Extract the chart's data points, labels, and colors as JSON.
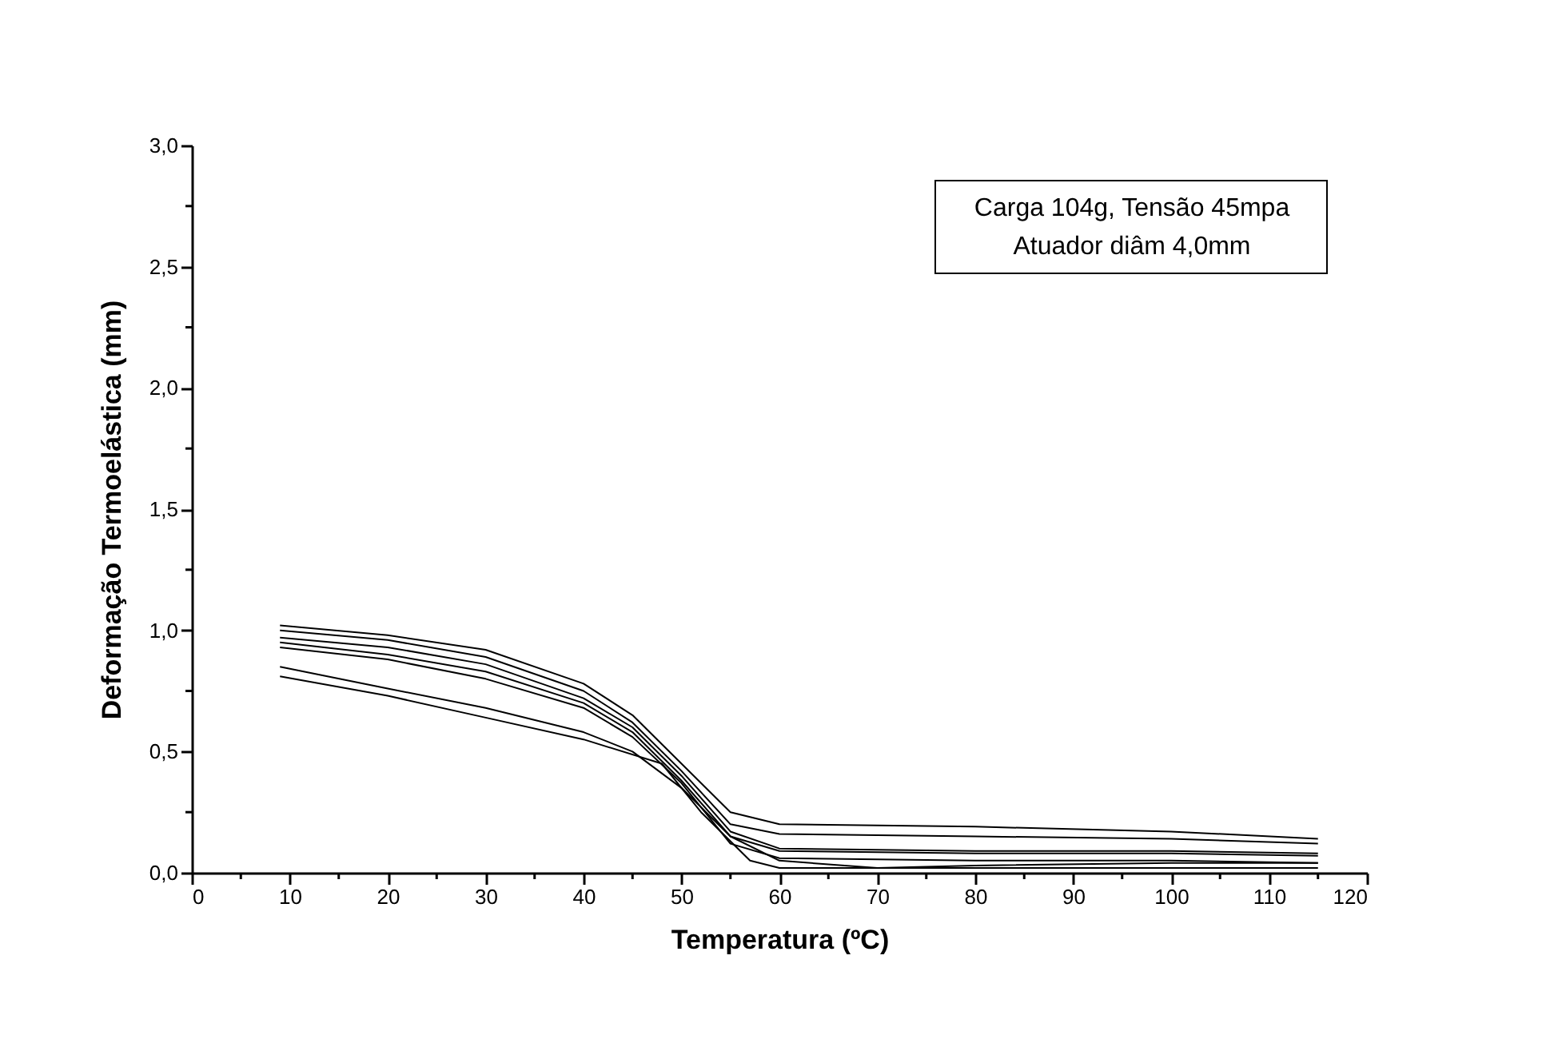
{
  "chart_data": {
    "type": "line",
    "xlabel": "Temperatura (ºC)",
    "ylabel": "Deformação Termoelástica (mm)",
    "annotations": [
      "Carga 104g, Tensão 45mpa",
      "Atuador diâm 4,0mm"
    ],
    "xlim": [
      0,
      120
    ],
    "xticks": [
      0,
      {
        "value": 5,
        "label": null
      },
      10,
      {
        "value": 15,
        "label": null
      },
      20,
      {
        "value": 25,
        "label": null
      },
      30,
      {
        "value": 35,
        "label": null
      },
      40,
      {
        "value": 45,
        "label": null
      },
      50,
      {
        "value": 55,
        "label": null
      },
      60,
      {
        "value": 65,
        "label": null
      },
      70,
      {
        "value": 75,
        "label": null
      },
      80,
      {
        "value": 85,
        "label": null
      },
      90,
      {
        "value": 95,
        "label": null
      },
      100,
      {
        "value": 105,
        "label": null
      },
      110,
      {
        "value": 115,
        "label": null
      },
      120
    ],
    "ylim": [
      0,
      3.0
    ],
    "yticks": [
      {
        "value": 0,
        "label": "0,0"
      },
      {
        "value": 0.25,
        "label": null
      },
      {
        "value": 0.5,
        "label": "0,5"
      },
      {
        "value": 0.75,
        "label": null
      },
      {
        "value": 1.0,
        "label": "1,0"
      },
      {
        "value": 1.25,
        "label": null
      },
      {
        "value": 1.5,
        "label": "1,5"
      },
      {
        "value": 1.75,
        "label": null
      },
      {
        "value": 2.0,
        "label": "2,0"
      },
      {
        "value": 2.25,
        "label": null
      },
      {
        "value": 2.5,
        "label": "2,5"
      },
      {
        "value": 2.75,
        "label": null
      },
      {
        "value": 3.0,
        "label": "3,0"
      }
    ],
    "grid": false,
    "marker": "none",
    "line_style": "solid",
    "series": [
      {
        "color": "#000000",
        "x": [
          9,
          20,
          30,
          40,
          45,
          50,
          55,
          60,
          80,
          100,
          115
        ],
        "values": [
          1.02,
          0.98,
          0.92,
          0.78,
          0.65,
          0.45,
          0.25,
          0.2,
          0.19,
          0.17,
          0.14
        ]
      },
      {
        "color": "#000000",
        "x": [
          9,
          20,
          30,
          40,
          45,
          50,
          55,
          60,
          80,
          100,
          115
        ],
        "values": [
          1.0,
          0.96,
          0.89,
          0.75,
          0.62,
          0.42,
          0.2,
          0.16,
          0.15,
          0.14,
          0.12
        ]
      },
      {
        "color": "#000000",
        "x": [
          9,
          20,
          30,
          40,
          45,
          50,
          55,
          60,
          80,
          100,
          115
        ],
        "values": [
          0.97,
          0.93,
          0.86,
          0.72,
          0.6,
          0.4,
          0.17,
          0.1,
          0.09,
          0.09,
          0.08
        ]
      },
      {
        "color": "#000000",
        "x": [
          9,
          20,
          30,
          40,
          45,
          50,
          55,
          60,
          80,
          100,
          115
        ],
        "values": [
          0.95,
          0.9,
          0.83,
          0.7,
          0.58,
          0.38,
          0.15,
          0.09,
          0.08,
          0.08,
          0.07
        ]
      },
      {
        "color": "#000000",
        "x": [
          9,
          20,
          30,
          40,
          45,
          50,
          55,
          60,
          80,
          100,
          115
        ],
        "values": [
          0.93,
          0.88,
          0.8,
          0.68,
          0.56,
          0.37,
          0.12,
          0.06,
          0.05,
          0.05,
          0.04
        ]
      },
      {
        "color": "#000000",
        "x": [
          9,
          20,
          30,
          40,
          45,
          50,
          55,
          60,
          70,
          80,
          100,
          115
        ],
        "values": [
          0.85,
          0.76,
          0.68,
          0.58,
          0.5,
          0.35,
          0.15,
          0.05,
          0.02,
          0.03,
          0.04,
          0.04
        ]
      },
      {
        "color": "#000000",
        "x": [
          9,
          20,
          30,
          40,
          48,
          52,
          57,
          60,
          80,
          115
        ],
        "values": [
          0.81,
          0.73,
          0.64,
          0.55,
          0.45,
          0.25,
          0.05,
          0.02,
          0.02,
          0.02
        ]
      }
    ]
  }
}
